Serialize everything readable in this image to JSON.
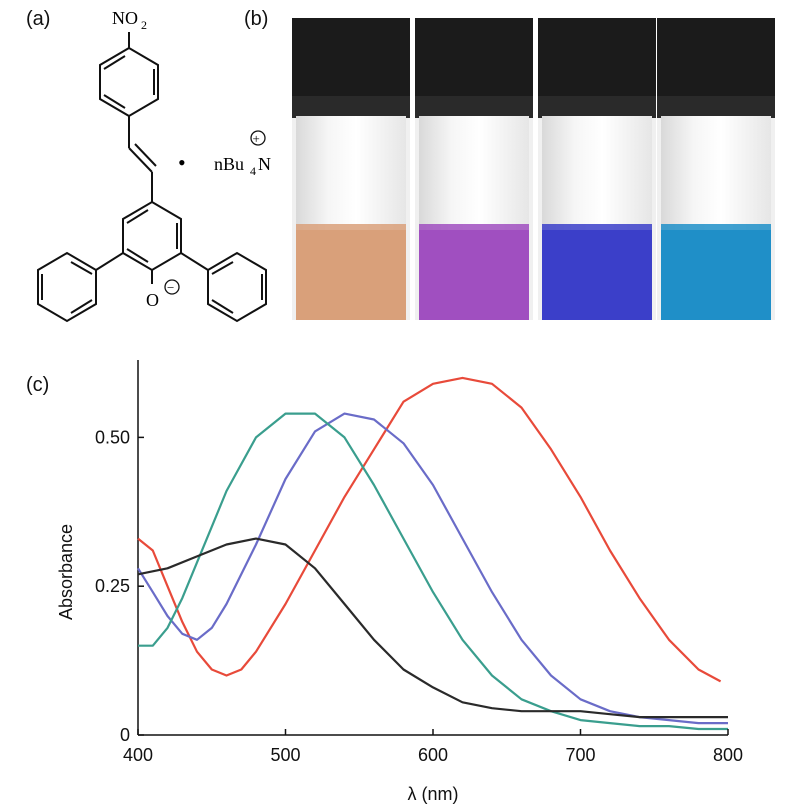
{
  "panels": {
    "a": "(a)",
    "b": "(b)",
    "c": "(c)"
  },
  "structure": {
    "nitro": "NO",
    "nitro_sub": "2",
    "counterion_prefix": "nBu",
    "counterion_sub": "4",
    "counterion_suffix": "N",
    "oxygen": "O",
    "bullet": "•",
    "plus": "+",
    "minus": "−"
  },
  "vials": [
    {
      "color": "#d9a07a"
    },
    {
      "color": "#a04fc0"
    },
    {
      "color": "#3b3fc9"
    },
    {
      "color": "#1f8fc8"
    }
  ],
  "chart_data": {
    "type": "line",
    "xlabel": "λ (nm)",
    "ylabel": "Absorbance",
    "xlim": [
      400,
      800
    ],
    "ylim": [
      0,
      0.63
    ],
    "xticks": [
      400,
      500,
      600,
      700,
      800
    ],
    "yticks": [
      0,
      0.25,
      0.5
    ],
    "ytick_labels": [
      "0",
      "0.25",
      "0.50"
    ],
    "series": [
      {
        "color": "#e84a3a",
        "x": [
          400,
          410,
          420,
          430,
          440,
          450,
          460,
          470,
          480,
          500,
          520,
          540,
          560,
          580,
          600,
          620,
          640,
          660,
          680,
          700,
          720,
          740,
          760,
          780,
          795
        ],
        "y": [
          0.33,
          0.31,
          0.25,
          0.19,
          0.14,
          0.11,
          0.1,
          0.11,
          0.14,
          0.22,
          0.31,
          0.4,
          0.48,
          0.56,
          0.59,
          0.6,
          0.59,
          0.55,
          0.48,
          0.4,
          0.31,
          0.23,
          0.16,
          0.11,
          0.09
        ]
      },
      {
        "color": "#6a6cc8",
        "x": [
          400,
          410,
          420,
          430,
          440,
          450,
          460,
          480,
          500,
          520,
          540,
          560,
          580,
          600,
          620,
          640,
          660,
          680,
          700,
          720,
          740,
          760,
          780,
          800
        ],
        "y": [
          0.28,
          0.24,
          0.2,
          0.17,
          0.16,
          0.18,
          0.22,
          0.32,
          0.43,
          0.51,
          0.54,
          0.53,
          0.49,
          0.42,
          0.33,
          0.24,
          0.16,
          0.1,
          0.06,
          0.04,
          0.03,
          0.025,
          0.02,
          0.02
        ]
      },
      {
        "color": "#3a9e8e",
        "x": [
          400,
          410,
          420,
          430,
          440,
          450,
          460,
          480,
          500,
          520,
          540,
          560,
          580,
          600,
          620,
          640,
          660,
          680,
          700,
          720,
          740,
          760,
          780,
          800
        ],
        "y": [
          0.15,
          0.15,
          0.18,
          0.23,
          0.29,
          0.35,
          0.41,
          0.5,
          0.54,
          0.54,
          0.5,
          0.42,
          0.33,
          0.24,
          0.16,
          0.1,
          0.06,
          0.04,
          0.025,
          0.02,
          0.015,
          0.015,
          0.01,
          0.01
        ]
      },
      {
        "color": "#2a2a2a",
        "x": [
          400,
          420,
          440,
          460,
          480,
          500,
          520,
          540,
          560,
          580,
          600,
          620,
          640,
          660,
          680,
          700,
          720,
          740,
          760,
          780,
          800
        ],
        "y": [
          0.27,
          0.28,
          0.3,
          0.32,
          0.33,
          0.32,
          0.28,
          0.22,
          0.16,
          0.11,
          0.08,
          0.055,
          0.045,
          0.04,
          0.04,
          0.04,
          0.035,
          0.03,
          0.03,
          0.03,
          0.03
        ]
      }
    ]
  }
}
